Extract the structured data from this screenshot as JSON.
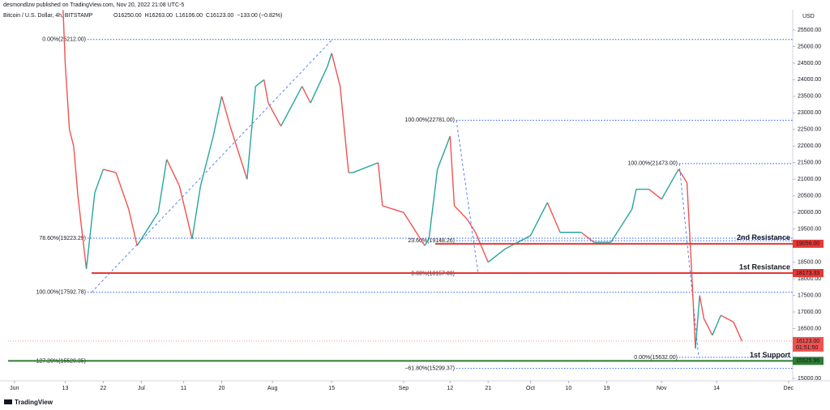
{
  "header": {
    "publisher": "desmondlzw published on TradingView.com, Nov 20, 2022 21:08 UTC-5",
    "symbol": "Bitcoin / U.S. Dollar, 4h, BITSTAMP",
    "ohlc": [
      "O16250.00",
      "H16263.00",
      "L16106.00",
      "C16123.00",
      "−133.00 (−0.82%)"
    ],
    "currency": "USD"
  },
  "chart_data": {
    "type": "line",
    "color_up": "#26a69a",
    "color_down": "#ef5350",
    "x": [
      11.5,
      12,
      13,
      14,
      15,
      17,
      19,
      21,
      24,
      27,
      29,
      30,
      34,
      36,
      39,
      42,
      44,
      47,
      49,
      51,
      55,
      57,
      59,
      60,
      63,
      68,
      70,
      74,
      75,
      77,
      79,
      80,
      86,
      87,
      92,
      97,
      98,
      100,
      103,
      104,
      107,
      109,
      112,
      116,
      122,
      126,
      129,
      134,
      137,
      141,
      146,
      147,
      150,
      153,
      157,
      159,
      160,
      161,
      162,
      163,
      165,
      167,
      170,
      172
    ],
    "values": [
      26100,
      24500,
      22500,
      22000,
      20500,
      18300,
      20600,
      21300,
      21200,
      20100,
      19000,
      19200,
      20000,
      21600,
      20800,
      19200,
      20800,
      22300,
      23500,
      22600,
      21000,
      23800,
      24000,
      23300,
      22600,
      23800,
      23300,
      24400,
      24800,
      23800,
      21200,
      21200,
      21500,
      20200,
      20000,
      19000,
      19200,
      21300,
      22300,
      20200,
      19800,
      19400,
      18500,
      18900,
      19300,
      20300,
      19400,
      19400,
      19100,
      19100,
      20100,
      20700,
      20700,
      20400,
      21300,
      20900,
      18500,
      15900,
      17500,
      16800,
      16300,
      16900,
      16700,
      16123
    ],
    "xlim": [
      -1.5,
      184
    ],
    "ylim": [
      14925,
      26110
    ],
    "xticks": [
      {
        "value": 0,
        "label": "Jun"
      },
      {
        "value": 12,
        "label": "13"
      },
      {
        "value": 21,
        "label": "22"
      },
      {
        "value": 30,
        "label": "Jul"
      },
      {
        "value": 40,
        "label": "11"
      },
      {
        "value": 49,
        "label": "20"
      },
      {
        "value": 61,
        "label": "Aug"
      },
      {
        "value": 75,
        "label": "15"
      },
      {
        "value": 92,
        "label": "Sep"
      },
      {
        "value": 103,
        "label": "12"
      },
      {
        "value": 112,
        "label": "21"
      },
      {
        "value": 122,
        "label": "Oct"
      },
      {
        "value": 131,
        "label": "10"
      },
      {
        "value": 140,
        "label": "19"
      },
      {
        "value": 153,
        "label": "Nov"
      },
      {
        "value": 166,
        "label": "14"
      },
      {
        "value": 183,
        "label": "Dec"
      }
    ],
    "yticks": [
      {
        "value": 15000,
        "label": "15000.00"
      },
      {
        "value": 15500,
        "label": "15500.00"
      },
      {
        "value": 16000,
        "label": "16000.00"
      },
      {
        "value": 16500,
        "label": "16500.00"
      },
      {
        "value": 17000,
        "label": "17000.00"
      },
      {
        "value": 17500,
        "label": "17500.00"
      },
      {
        "value": 18000,
        "label": "18000.00"
      },
      {
        "value": 18500,
        "label": "18500.00"
      },
      {
        "value": 19000,
        "label": "19000.00"
      },
      {
        "value": 19500,
        "label": "19500.00"
      },
      {
        "value": 20000,
        "label": "20000.00"
      },
      {
        "value": 20500,
        "label": "20500.00"
      },
      {
        "value": 21000,
        "label": "21000.00"
      },
      {
        "value": 21500,
        "label": "21500.00"
      },
      {
        "value": 22000,
        "label": "22000.00"
      },
      {
        "value": 22500,
        "label": "22500.00"
      },
      {
        "value": 23000,
        "label": "23000.00"
      },
      {
        "value": 23500,
        "label": "23500.00"
      },
      {
        "value": 24000,
        "label": "24000.00"
      },
      {
        "value": 24500,
        "label": "24500.00"
      },
      {
        "value": 25000,
        "label": "25000.00"
      },
      {
        "value": 25500,
        "label": "25500.00"
      }
    ],
    "fib_groups": [
      {
        "levels": [
          {
            "label": "0.00%(25212.00)",
            "value": 25212
          },
          {
            "label": "78.60%(19223.29)",
            "value": 19223.29
          },
          {
            "label": "100.00%(17592.78)",
            "value": 17592.78
          },
          {
            "label": "127.20%(15520.35)",
            "value": 15520.35
          }
        ]
      },
      {
        "levels": [
          {
            "label": "100.00%(22781.00)",
            "value": 22781
          },
          {
            "label": "23.60%(19148.26)",
            "value": 19148.26
          },
          {
            "label": "0.00%(18157.00)",
            "value": 18157
          },
          {
            "label": "−61.80%(15299.37)",
            "value": 15299.37
          }
        ]
      },
      {
        "levels": [
          {
            "label": "100.00%(21473.00)",
            "value": 21473
          },
          {
            "label": "0.00%(15632.00)",
            "value": 15632
          }
        ]
      }
    ],
    "levels": [
      {
        "label": "2nd Resistance",
        "value": 19056,
        "tag": "19056.00",
        "color": "#e53935"
      },
      {
        "label": "1st Resistance",
        "value": 18173.33,
        "tag": "18173.33",
        "color": "#e53935"
      },
      {
        "label": "1st Support",
        "value": 15525.96,
        "tag": "15525.96",
        "color": "#2e7d32"
      }
    ],
    "last": {
      "value": 16123,
      "tag": "16123.00",
      "countdown": "01:51:50",
      "color": "#ef5350"
    }
  },
  "footer": {
    "brand": "TradingView"
  }
}
